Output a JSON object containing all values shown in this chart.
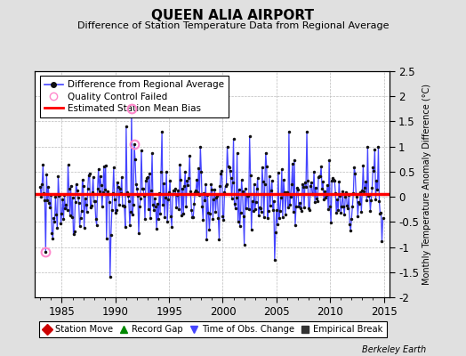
{
  "title": "QUEEN ALIA AIRPORT",
  "subtitle": "Difference of Station Temperature Data from Regional Average",
  "ylabel": "Monthly Temperature Anomaly Difference (°C)",
  "xlabel_ticks": [
    1985,
    1990,
    1995,
    2000,
    2005,
    2010,
    2015
  ],
  "ylim": [
    -2.0,
    2.5
  ],
  "yticks": [
    -2.0,
    -1.5,
    -1.0,
    -0.5,
    0.0,
    0.5,
    1.0,
    1.5,
    2.0,
    2.5
  ],
  "xlim": [
    1982.5,
    2015.5
  ],
  "mean_bias": 0.05,
  "background_color": "#e0e0e0",
  "plot_bg_color": "#ffffff",
  "line_color": "#4444ff",
  "marker_color": "#111111",
  "bias_color": "#ff0000",
  "qc_color": "#ff88cc",
  "grid_color": "#bbbbbb",
  "legend1_items": [
    {
      "label": "Difference from Regional Average",
      "color": "#4444ff",
      "marker": "o",
      "linestyle": "-"
    },
    {
      "label": "Quality Control Failed",
      "color": "#ff88cc",
      "marker": "o",
      "linestyle": "none"
    },
    {
      "label": "Estimated Station Mean Bias",
      "color": "#ff0000",
      "marker": "none",
      "linestyle": "-"
    }
  ],
  "legend2_items": [
    {
      "label": "Station Move",
      "color": "#cc0000",
      "marker": "D"
    },
    {
      "label": "Record Gap",
      "color": "#008800",
      "marker": "^"
    },
    {
      "label": "Time of Obs. Change",
      "color": "#4444ff",
      "marker": "v"
    },
    {
      "label": "Empirical Break",
      "color": "#333333",
      "marker": "s"
    }
  ],
  "seed": 42
}
